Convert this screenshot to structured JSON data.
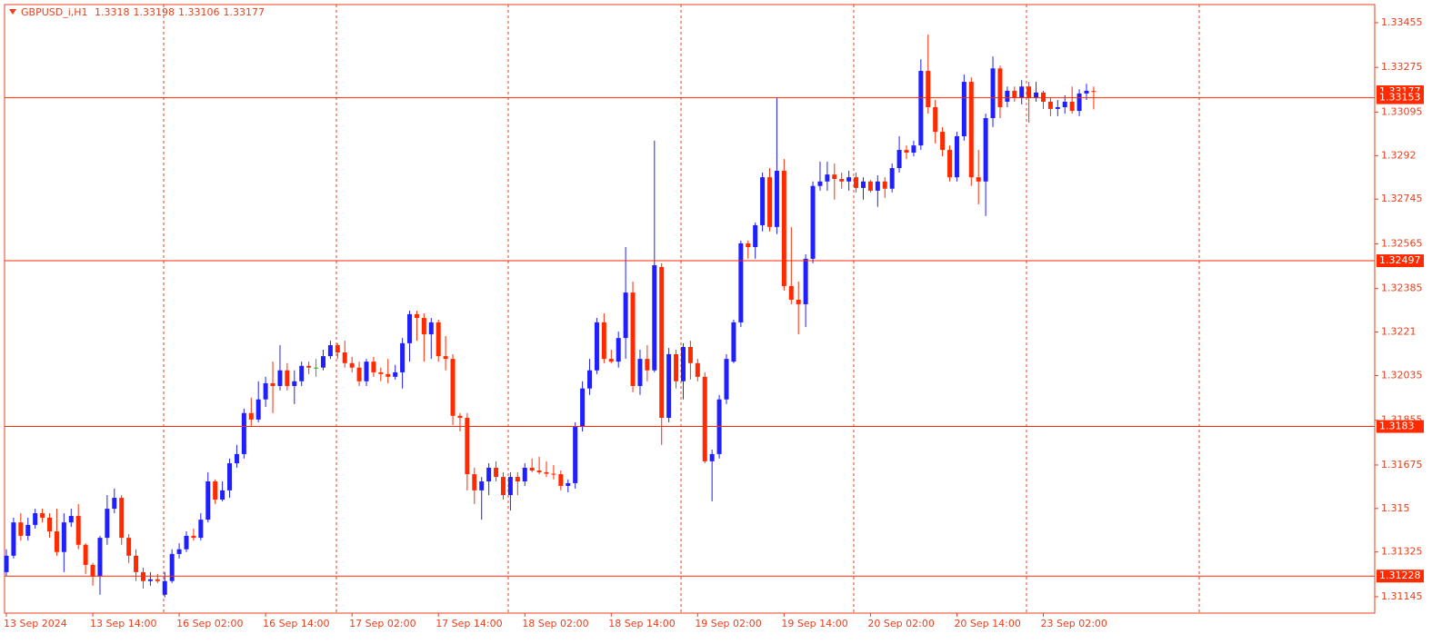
{
  "chart_data": {
    "type": "candlestick",
    "title": "GBPUSD_i,H1",
    "categories": [
      "13 Sep 2024",
      null,
      null,
      null,
      null,
      null,
      null,
      null,
      null,
      null,
      null,
      null,
      "13 Sep 14:00",
      null,
      null,
      null,
      null,
      null,
      null,
      null,
      null,
      null,
      null,
      null,
      "16 Sep 02:00",
      null,
      null,
      null,
      null,
      null,
      null,
      null,
      null,
      null,
      null,
      null,
      "16 Sep 14:00",
      null,
      null,
      null,
      null,
      null,
      null,
      null,
      null,
      null,
      null,
      null,
      "17 Sep 02:00",
      null,
      null,
      null,
      null,
      null,
      null,
      null,
      null,
      null,
      null,
      null,
      "17 Sep 14:00",
      null,
      null,
      null,
      null,
      null,
      null,
      null,
      null,
      null,
      null,
      null,
      "18 Sep 02:00",
      null,
      null,
      null,
      null,
      null,
      null,
      null,
      null,
      null,
      null,
      null,
      "18 Sep 14:00",
      null,
      null,
      null,
      null,
      null,
      null,
      null,
      null,
      null,
      null,
      null,
      "19 Sep 02:00",
      null,
      null,
      null,
      null,
      null,
      null,
      null,
      null,
      null,
      null,
      null,
      "19 Sep 14:00",
      null,
      null,
      null,
      null,
      null,
      null,
      null,
      null,
      null,
      null,
      null,
      "20 Sep 02:00",
      null,
      null,
      null,
      null,
      null,
      null,
      null,
      null,
      null,
      null,
      null,
      "20 Sep 14:00",
      null,
      null,
      null,
      null,
      null,
      null,
      null,
      null,
      null,
      null,
      null,
      "23 Sep 02:00",
      null,
      null,
      null,
      null,
      null,
      null,
      null
    ],
    "open": [
      1.31244,
      1.3131,
      1.31444,
      1.3139,
      1.31434,
      1.31481,
      1.31463,
      1.31408,
      1.31325,
      1.31444,
      1.3147,
      1.31354,
      1.31273,
      1.31226,
      1.31382,
      1.31499,
      1.31543,
      1.31382,
      1.3131,
      1.31244,
      1.31208,
      1.31215,
      1.31153,
      1.31208,
      1.31317,
      1.31336,
      1.3139,
      1.31382,
      1.31455,
      1.31609,
      1.31536,
      1.31573,
      1.31682,
      1.31719,
      1.31884,
      1.31858,
      1.31939,
      1.32004,
      1.31993,
      1.32056,
      1.31993,
      1.32012,
      1.32074,
      1.32067,
      1.32067,
      1.32113,
      1.32157,
      1.32128,
      1.32085,
      1.32067,
      1.32012,
      1.32091,
      1.32048,
      1.32041,
      1.3203,
      1.32048,
      1.32165,
      1.32282,
      1.32267,
      1.32201,
      1.32249,
      1.32113,
      1.32102,
      1.31873,
      1.31865,
      1.31638,
      1.31573,
      1.31609,
      1.31664,
      1.31627,
      1.31554,
      1.31627,
      1.31609,
      1.31664,
      1.31653,
      1.31646,
      1.3164,
      1.31638,
      1.31591,
      1.31602,
      1.31829,
      1.31983,
      1.32056,
      1.32249,
      1.32102,
      1.32091,
      1.32186,
      1.32369,
      1.31993,
      1.32102,
      1.32056,
      1.32472,
      1.31865,
      1.32121,
      1.32012,
      1.3215,
      1.32085,
      1.3203,
      1.3169,
      1.31719,
      1.31939,
      1.32091,
      1.32249,
      1.32567,
      1.32552,
      1.3264,
      1.32833,
      1.32633,
      1.32859,
      1.32395,
      1.3234,
      1.32322,
      1.32505,
      1.32798,
      1.32816,
      1.32844,
      1.32826,
      1.32816,
      1.32833,
      1.3279,
      1.32816,
      1.32779,
      1.32816,
      1.32787,
      1.3287,
      1.32943,
      1.32932,
      1.32961,
      1.33261,
      1.33115,
      1.33016,
      1.32943,
      1.32833,
      1.32998,
      1.33217,
      1.32833,
      1.32816,
      1.33071,
      1.33271,
      1.33137,
      1.33181,
      1.33152,
      1.33198,
      1.33152,
      1.33174,
      1.33137,
      1.33108,
      1.33115,
      1.33137,
      1.331,
      1.3317,
      1.3318
    ],
    "high": [
      1.31336,
      1.31463,
      1.31481,
      1.31463,
      1.31499,
      1.31499,
      1.31481,
      1.31499,
      1.31481,
      1.31499,
      1.31518,
      1.3136,
      1.31281,
      1.3139,
      1.31554,
      1.3158,
      1.31554,
      1.31397,
      1.31336,
      1.31262,
      1.31244,
      1.31237,
      1.31244,
      1.31336,
      1.3136,
      1.31408,
      1.31419,
      1.31481,
      1.31646,
      1.31617,
      1.31609,
      1.31701,
      1.31756,
      1.31902,
      1.31946,
      1.32012,
      1.3203,
      1.32091,
      1.32157,
      1.32085,
      1.32056,
      1.32091,
      1.32091,
      1.32102,
      1.32139,
      1.32175,
      1.32165,
      1.32175,
      1.3211,
      1.32091,
      1.32102,
      1.3211,
      1.32067,
      1.32102,
      1.32078,
      1.32186,
      1.32296,
      1.32296,
      1.32285,
      1.32267,
      1.3226,
      1.32194,
      1.32121,
      1.31884,
      1.31884,
      1.31664,
      1.31627,
      1.31682,
      1.3169,
      1.31646,
      1.31646,
      1.31646,
      1.31682,
      1.31701,
      1.31708,
      1.3169,
      1.31675,
      1.31653,
      1.31617,
      1.31847,
      1.32012,
      1.32102,
      1.32267,
      1.32285,
      1.32139,
      1.32212,
      1.32552,
      1.32413,
      1.32139,
      1.32157,
      1.3298,
      1.32487,
      1.32146,
      1.32139,
      1.32165,
      1.32175,
      1.32102,
      1.32048,
      1.31737,
      1.31957,
      1.32121,
      1.3226,
      1.32578,
      1.32578,
      1.32651,
      1.32852,
      1.3287,
      1.33152,
      1.32906,
      1.32633,
      1.32413,
      1.32523,
      1.32816,
      1.32896,
      1.32896,
      1.32888,
      1.32852,
      1.32859,
      1.32852,
      1.32833,
      1.32822,
      1.32841,
      1.32833,
      1.32888,
      1.32998,
      1.32961,
      1.3298,
      1.33308,
      1.33407,
      1.33144,
      1.33035,
      1.32961,
      1.33016,
      1.33246,
      1.33235,
      1.32943,
      1.33089,
      1.33319,
      1.33282,
      1.33198,
      1.33198,
      1.33224,
      1.33217,
      1.33217,
      1.33181,
      1.33152,
      1.33144,
      1.33163,
      1.33198,
      1.33187,
      1.33209,
      1.33198
    ],
    "low": [
      1.3123,
      1.31299,
      1.31371,
      1.31371,
      1.31419,
      1.31444,
      1.31382,
      1.3131,
      1.31244,
      1.31426,
      1.31336,
      1.31237,
      1.31189,
      1.31153,
      1.31354,
      1.31481,
      1.31354,
      1.31281,
      1.31208,
      1.31178,
      1.31189,
      1.312,
      1.31142,
      1.312,
      1.31299,
      1.31325,
      1.31371,
      1.31371,
      1.31444,
      1.31518,
      1.31529,
      1.31543,
      1.31664,
      1.31701,
      1.31829,
      1.31847,
      1.31909,
      1.31884,
      1.31975,
      1.31975,
      1.3192,
      1.31993,
      1.32041,
      1.3203,
      1.32056,
      1.32102,
      1.32102,
      1.32067,
      1.32048,
      1.31993,
      1.31993,
      1.3203,
      1.32012,
      1.32004,
      1.32019,
      1.31983,
      1.32091,
      1.32175,
      1.32091,
      1.32102,
      1.32091,
      1.32056,
      1.31836,
      1.3181,
      1.31573,
      1.31518,
      1.31455,
      1.31554,
      1.31609,
      1.31536,
      1.31492,
      1.31554,
      1.31591,
      1.31646,
      1.31638,
      1.31627,
      1.31617,
      1.31573,
      1.31565,
      1.3158,
      1.3181,
      1.31957,
      1.32041,
      1.32085,
      1.32085,
      1.32067,
      1.32102,
      1.31968,
      1.31957,
      1.32012,
      1.32048,
      1.31756,
      1.31847,
      1.31983,
      1.31939,
      1.32019,
      1.32012,
      1.31682,
      1.31529,
      1.31701,
      1.3192,
      1.32085,
      1.3223,
      1.32505,
      1.32505,
      1.32615,
      1.32615,
      1.32604,
      1.32377,
      1.32322,
      1.32201,
      1.3223,
      1.32487,
      1.32779,
      1.32779,
      1.32743,
      1.32787,
      1.32779,
      1.32772,
      1.32743,
      1.32772,
      1.32714,
      1.3275,
      1.32772,
      1.32852,
      1.32906,
      1.32917,
      1.32943,
      1.33089,
      1.32969,
      1.32917,
      1.32816,
      1.32816,
      1.3298,
      1.32798,
      1.32724,
      1.32677,
      1.33035,
      1.33071,
      1.33115,
      1.33137,
      1.33126,
      1.33053,
      1.33137,
      1.33108,
      1.33079,
      1.33079,
      1.33089,
      1.33089,
      1.33079,
      1.33144,
      1.33106
    ],
    "close": [
      1.3131,
      1.31444,
      1.3139,
      1.31434,
      1.31481,
      1.31463,
      1.31408,
      1.31325,
      1.31444,
      1.3147,
      1.31354,
      1.31273,
      1.31226,
      1.31382,
      1.31499,
      1.31543,
      1.31382,
      1.3131,
      1.31244,
      1.31208,
      1.31215,
      1.31208,
      1.31208,
      1.31317,
      1.31336,
      1.3139,
      1.31382,
      1.31455,
      1.31609,
      1.31536,
      1.31573,
      1.31682,
      1.31719,
      1.31884,
      1.31858,
      1.31939,
      1.32004,
      1.31993,
      1.32056,
      1.31993,
      1.32012,
      1.32074,
      1.32067,
      1.32067,
      1.32113,
      1.32157,
      1.32128,
      1.32085,
      1.32067,
      1.32012,
      1.32091,
      1.32048,
      1.32041,
      1.3203,
      1.32048,
      1.32165,
      1.32282,
      1.32267,
      1.32201,
      1.32249,
      1.32113,
      1.32102,
      1.31873,
      1.31865,
      1.31638,
      1.31573,
      1.31609,
      1.31664,
      1.31627,
      1.31554,
      1.31627,
      1.31609,
      1.31664,
      1.31653,
      1.31646,
      1.3164,
      1.31638,
      1.31591,
      1.31602,
      1.31829,
      1.31983,
      1.32056,
      1.32249,
      1.32102,
      1.32091,
      1.32186,
      1.32369,
      1.31993,
      1.32102,
      1.32056,
      1.32479,
      1.31865,
      1.32121,
      1.32012,
      1.3215,
      1.32085,
      1.3203,
      1.3169,
      1.31719,
      1.31939,
      1.32102,
      1.32249,
      1.32567,
      1.32552,
      1.3264,
      1.32833,
      1.32633,
      1.32859,
      1.32395,
      1.3234,
      1.32322,
      1.32505,
      1.32798,
      1.32816,
      1.32844,
      1.32826,
      1.32816,
      1.32833,
      1.3279,
      1.32816,
      1.32779,
      1.32816,
      1.32787,
      1.3287,
      1.32943,
      1.32932,
      1.32961,
      1.33261,
      1.33115,
      1.33016,
      1.32943,
      1.32833,
      1.32998,
      1.33217,
      1.32833,
      1.32816,
      1.33071,
      1.33271,
      1.33115,
      1.33181,
      1.33152,
      1.33198,
      1.33152,
      1.33174,
      1.33137,
      1.33108,
      1.33115,
      1.33137,
      1.331,
      1.3317,
      1.33181,
      1.33177
    ],
    "up_color": "#1f1fff",
    "down_color": "#ff2a00",
    "doji_color": "#00c800",
    "ylim": [
      1.31079,
      1.33528
    ],
    "yticks": [
      1.33455,
      1.33275,
      1.33095,
      1.3292,
      1.32745,
      1.32565,
      1.32385,
      1.3221,
      1.32035,
      1.31855,
      1.31675,
      1.315,
      1.31325,
      1.31145
    ],
    "levels": [
      1.33153,
      1.32497,
      1.3183,
      1.31228
    ],
    "level_color": "#ff2a00"
  }
}
